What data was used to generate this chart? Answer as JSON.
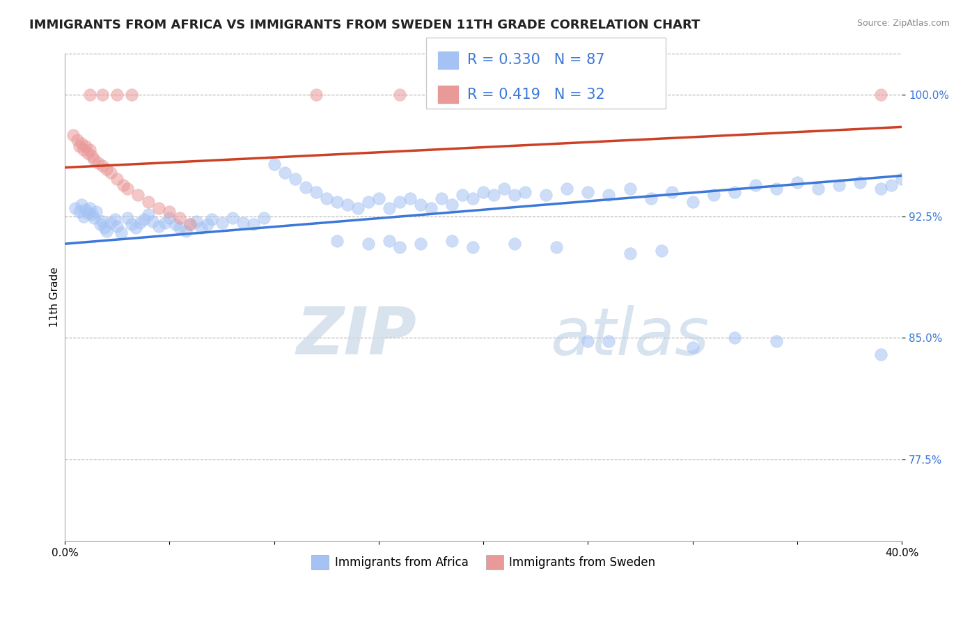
{
  "title": "IMMIGRANTS FROM AFRICA VS IMMIGRANTS FROM SWEDEN 11TH GRADE CORRELATION CHART",
  "source": "Source: ZipAtlas.com",
  "ylabel": "11th Grade",
  "x_min": 0.0,
  "x_max": 0.4,
  "y_min": 0.725,
  "y_max": 1.025,
  "y_ticks": [
    0.775,
    0.85,
    0.925,
    1.0
  ],
  "y_tick_labels": [
    "77.5%",
    "85.0%",
    "92.5%",
    "100.0%"
  ],
  "x_ticks": [
    0.0,
    0.05,
    0.1,
    0.15,
    0.2,
    0.25,
    0.3,
    0.35,
    0.4
  ],
  "x_tick_labels": [
    "0.0%",
    "",
    "",
    "",
    "",
    "",
    "",
    "",
    "40.0%"
  ],
  "legend_r_blue": "0.330",
  "legend_n_blue": "87",
  "legend_r_pink": "0.419",
  "legend_n_pink": "32",
  "blue_color": "#a4c2f4",
  "pink_color": "#ea9999",
  "blue_line_color": "#3c78d8",
  "pink_line_color": "#cc4125",
  "watermark_zip": "ZIP",
  "watermark_atlas": "atlas",
  "blue_scatter_x": [
    0.005,
    0.007,
    0.008,
    0.009,
    0.01,
    0.011,
    0.012,
    0.013,
    0.014,
    0.015,
    0.017,
    0.018,
    0.019,
    0.02,
    0.022,
    0.024,
    0.025,
    0.027,
    0.03,
    0.032,
    0.034,
    0.036,
    0.038,
    0.04,
    0.042,
    0.045,
    0.048,
    0.05,
    0.053,
    0.055,
    0.058,
    0.06,
    0.063,
    0.065,
    0.068,
    0.07,
    0.075,
    0.08,
    0.085,
    0.09,
    0.095,
    0.1,
    0.105,
    0.11,
    0.115,
    0.12,
    0.125,
    0.13,
    0.135,
    0.14,
    0.145,
    0.15,
    0.155,
    0.16,
    0.165,
    0.17,
    0.175,
    0.18,
    0.185,
    0.19,
    0.195,
    0.2,
    0.205,
    0.21,
    0.215,
    0.22,
    0.23,
    0.24,
    0.25,
    0.26,
    0.27,
    0.28,
    0.29,
    0.3,
    0.31,
    0.32,
    0.33,
    0.34,
    0.35,
    0.36,
    0.37,
    0.38,
    0.39,
    0.395,
    0.4,
    0.26,
    0.3
  ],
  "blue_scatter_y": [
    0.93,
    0.928,
    0.932,
    0.925,
    0.929,
    0.927,
    0.93,
    0.926,
    0.924,
    0.928,
    0.92,
    0.922,
    0.918,
    0.916,
    0.921,
    0.923,
    0.919,
    0.915,
    0.924,
    0.92,
    0.918,
    0.921,
    0.923,
    0.926,
    0.922,
    0.919,
    0.921,
    0.924,
    0.92,
    0.918,
    0.916,
    0.92,
    0.922,
    0.918,
    0.92,
    0.923,
    0.921,
    0.924,
    0.921,
    0.92,
    0.924,
    0.957,
    0.952,
    0.948,
    0.943,
    0.94,
    0.936,
    0.934,
    0.932,
    0.93,
    0.934,
    0.936,
    0.93,
    0.934,
    0.936,
    0.932,
    0.93,
    0.936,
    0.932,
    0.938,
    0.936,
    0.94,
    0.938,
    0.942,
    0.938,
    0.94,
    0.938,
    0.942,
    0.94,
    0.938,
    0.942,
    0.936,
    0.94,
    0.934,
    0.938,
    0.94,
    0.944,
    0.942,
    0.946,
    0.942,
    0.944,
    0.946,
    0.942,
    0.944,
    0.948,
    0.848,
    0.844
  ],
  "blue_scatter_x2": [
    0.13,
    0.145,
    0.155,
    0.16,
    0.17,
    0.185,
    0.195,
    0.215,
    0.235,
    0.25,
    0.27,
    0.285,
    0.32,
    0.34,
    0.39
  ],
  "blue_scatter_y2": [
    0.91,
    0.908,
    0.91,
    0.906,
    0.908,
    0.91,
    0.906,
    0.908,
    0.906,
    0.848,
    0.902,
    0.904,
    0.85,
    0.848,
    0.84
  ],
  "pink_scatter_x": [
    0.004,
    0.006,
    0.007,
    0.008,
    0.009,
    0.01,
    0.011,
    0.012,
    0.013,
    0.014,
    0.016,
    0.018,
    0.02,
    0.022,
    0.025,
    0.028,
    0.03,
    0.035,
    0.04,
    0.045,
    0.05,
    0.055,
    0.06,
    0.012,
    0.018,
    0.025,
    0.032,
    0.12,
    0.16,
    0.21,
    0.26,
    0.39
  ],
  "pink_scatter_y": [
    0.975,
    0.972,
    0.968,
    0.97,
    0.966,
    0.968,
    0.964,
    0.966,
    0.962,
    0.96,
    0.958,
    0.956,
    0.954,
    0.952,
    0.948,
    0.944,
    0.942,
    0.938,
    0.934,
    0.93,
    0.928,
    0.924,
    0.92,
    1.0,
    1.0,
    1.0,
    1.0,
    1.0,
    1.0,
    1.0,
    1.0,
    1.0
  ],
  "blue_trend_x": [
    0.0,
    0.4
  ],
  "blue_trend_y": [
    0.908,
    0.95
  ],
  "pink_trend_x": [
    0.0,
    0.4
  ],
  "pink_trend_y": [
    0.955,
    0.98
  ],
  "title_fontsize": 13,
  "axis_label_fontsize": 11,
  "tick_fontsize": 11,
  "legend_fontsize": 15
}
